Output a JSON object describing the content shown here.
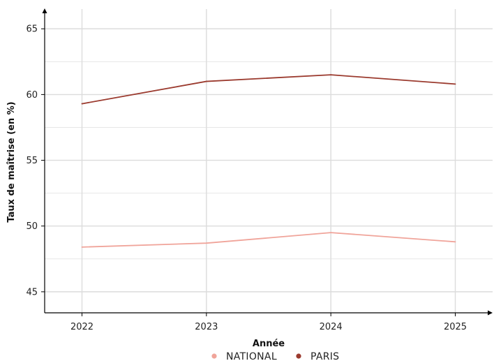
{
  "chart_data": {
    "type": "line",
    "x": [
      2022,
      2023,
      2024,
      2025
    ],
    "xlabel": "Année",
    "ylabel": "Taux de maîtrise (en %)",
    "xlim": [
      2021.7,
      2025.3
    ],
    "ylim": [
      43.4,
      66.5
    ],
    "xticks": [
      "2022",
      "2023",
      "2024",
      "2025"
    ],
    "yticks": [
      "45",
      "50",
      "55",
      "60",
      "65"
    ],
    "ytick_values": [
      45,
      50,
      55,
      60,
      65
    ],
    "ygrid_minor": [
      47.5,
      52.5,
      57.5,
      62.5
    ],
    "grid": true,
    "legend_position": "bottom",
    "series": [
      {
        "name": "NATIONAL",
        "color": "#f0a49a",
        "values": [
          48.4,
          48.7,
          49.5,
          48.8
        ]
      },
      {
        "name": "PARIS",
        "color": "#9b3a2e",
        "values": [
          59.3,
          61.0,
          61.5,
          60.8
        ]
      }
    ]
  }
}
